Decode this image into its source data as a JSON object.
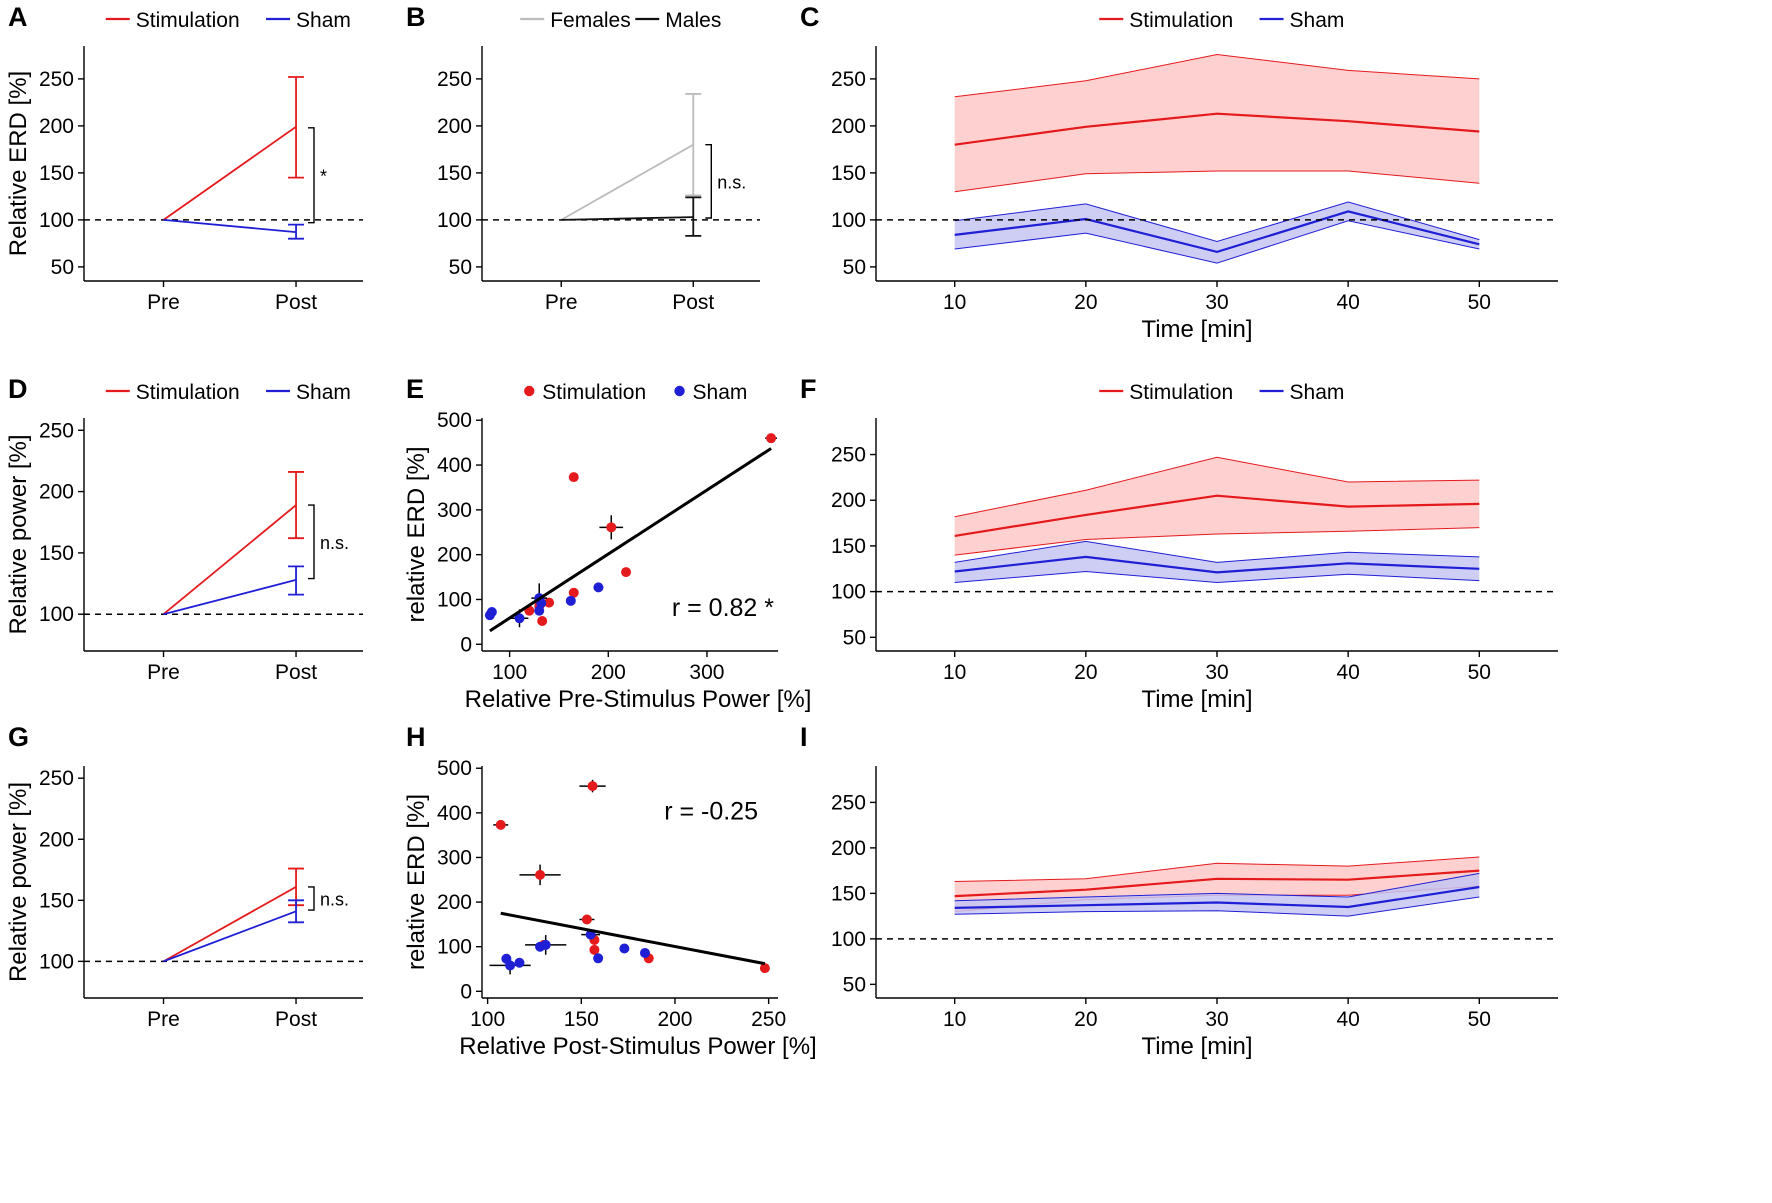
{
  "colors": {
    "stimulation": "#e41a1c",
    "sham": "#1f1fd6",
    "stim_fill": "#ffc8c8",
    "sham_fill": "#c6c6f2",
    "females": "#bbbbbb",
    "males": "#111111",
    "fit": "#000000"
  },
  "chart_data": [
    {
      "panel": "A",
      "type": "line",
      "categories": [
        "Pre",
        "Post"
      ],
      "ylabel": "Relative ERD [%]",
      "xlabel": "",
      "ylim": [
        35,
        285
      ],
      "yticks": [
        50,
        100,
        150,
        200,
        250
      ],
      "reference_line": 100,
      "legend": {
        "position": "top",
        "entries": [
          "Stimulation",
          "Sham"
        ]
      },
      "series": [
        {
          "name": "Stimulation",
          "color_key": "stimulation",
          "values": [
            100,
            199
          ],
          "err_low": [
            null,
            145
          ],
          "err_high": [
            null,
            252
          ]
        },
        {
          "name": "Sham",
          "color_key": "sham",
          "values": [
            100,
            87
          ],
          "err_low": [
            null,
            80
          ],
          "err_high": [
            null,
            95
          ]
        }
      ],
      "comparison": {
        "label": "*",
        "from": 97,
        "to": 198
      }
    },
    {
      "panel": "B",
      "type": "line",
      "categories": [
        "Pre",
        "Post"
      ],
      "ylabel": "",
      "xlabel": "",
      "ylim": [
        35,
        285
      ],
      "yticks": [
        50,
        100,
        150,
        200,
        250
      ],
      "reference_line": 100,
      "legend": {
        "position": "top",
        "entries": [
          "Females",
          "Males"
        ]
      },
      "series": [
        {
          "name": "Females",
          "color_key": "females",
          "values": [
            100,
            180
          ],
          "err_low": [
            null,
            126
          ],
          "err_high": [
            null,
            234
          ]
        },
        {
          "name": "Males",
          "color_key": "males",
          "values": [
            100,
            103
          ],
          "err_low": [
            null,
            83
          ],
          "err_high": [
            null,
            124
          ]
        }
      ],
      "comparison": {
        "label": "n.s.",
        "from": 102,
        "to": 180
      }
    },
    {
      "panel": "C",
      "type": "area",
      "x": [
        10,
        20,
        30,
        40,
        50
      ],
      "xlabel": "Time [min]",
      "ylabel": "",
      "xlim": [
        4,
        56
      ],
      "xticks": [
        10,
        20,
        30,
        40,
        50
      ],
      "ylim": [
        35,
        285
      ],
      "yticks": [
        50,
        100,
        150,
        200,
        250
      ],
      "reference_line": 100,
      "legend": {
        "position": "top",
        "entries": [
          "Stimulation",
          "Sham"
        ]
      },
      "series": [
        {
          "name": "Stimulation",
          "color_key": "stimulation",
          "fill_key": "stim_fill",
          "values": [
            180,
            199,
            213,
            205,
            194
          ],
          "lower": [
            130,
            149,
            152,
            152,
            139
          ],
          "upper": [
            231,
            248,
            276,
            259,
            250
          ]
        },
        {
          "name": "Sham",
          "color_key": "sham",
          "fill_key": "sham_fill",
          "values": [
            84,
            101,
            66,
            109,
            74
          ],
          "lower": [
            69,
            86,
            54,
            99,
            69
          ],
          "upper": [
            99,
            117,
            77,
            119,
            79
          ]
        }
      ]
    },
    {
      "panel": "D",
      "type": "line",
      "categories": [
        "Pre",
        "Post"
      ],
      "ylabel": "Relative power [%]",
      "xlabel": "",
      "ylim": [
        70,
        260
      ],
      "yticks": [
        100,
        150,
        200,
        250
      ],
      "reference_line": 100,
      "legend": {
        "position": "top",
        "entries": [
          "Stimulation",
          "Sham"
        ]
      },
      "series": [
        {
          "name": "Stimulation",
          "color_key": "stimulation",
          "values": [
            100,
            189
          ],
          "err_low": [
            null,
            162
          ],
          "err_high": [
            null,
            216
          ]
        },
        {
          "name": "Sham",
          "color_key": "sham",
          "values": [
            100,
            128
          ],
          "err_low": [
            null,
            116
          ],
          "err_high": [
            null,
            139
          ]
        }
      ],
      "comparison": {
        "label": "n.s.",
        "from": 129,
        "to": 189
      }
    },
    {
      "panel": "E",
      "type": "scatter",
      "xlabel": "Relative Pre-Stimulus Power [%]",
      "ylabel": "relative ERD [%]",
      "xlim": [
        72,
        372
      ],
      "xticks": [
        100,
        200,
        300
      ],
      "ylim": [
        -15,
        505
      ],
      "yticks": [
        0,
        100,
        200,
        300,
        400,
        500
      ],
      "legend": {
        "position": "top",
        "entries": [
          "Stimulation",
          "Sham"
        ]
      },
      "fit": {
        "x": [
          80,
          365
        ],
        "y": [
          30,
          437
        ]
      },
      "annotation": "r = 0.82 *",
      "points": [
        {
          "group": "Stimulation",
          "x": 365,
          "y": 460,
          "xerr": 6,
          "yerr": 10
        },
        {
          "group": "Stimulation",
          "x": 165,
          "y": 373,
          "xerr": 4,
          "yerr": 6
        },
        {
          "group": "Stimulation",
          "x": 203,
          "y": 261,
          "xerr": 12,
          "yerr": 27
        },
        {
          "group": "Stimulation",
          "x": 218,
          "y": 161,
          "xerr": 4,
          "yerr": 8
        },
        {
          "group": "Stimulation",
          "x": 165,
          "y": 115,
          "xerr": 0,
          "yerr": 0
        },
        {
          "group": "Stimulation",
          "x": 140,
          "y": 93,
          "xerr": 0,
          "yerr": 0
        },
        {
          "group": "Stimulation",
          "x": 130,
          "y": 85,
          "xerr": 0,
          "yerr": 0
        },
        {
          "group": "Stimulation",
          "x": 120,
          "y": 75,
          "xerr": 0,
          "yerr": 0
        },
        {
          "group": "Stimulation",
          "x": 133,
          "y": 52,
          "xerr": 0,
          "yerr": 0
        },
        {
          "group": "Sham",
          "x": 82,
          "y": 72,
          "xerr": 0,
          "yerr": 0
        },
        {
          "group": "Sham",
          "x": 80,
          "y": 65,
          "xerr": 0,
          "yerr": 0
        },
        {
          "group": "Sham",
          "x": 110,
          "y": 58,
          "xerr": 9,
          "yerr": 20
        },
        {
          "group": "Sham",
          "x": 130,
          "y": 103,
          "xerr": 8,
          "yerr": 33
        },
        {
          "group": "Sham",
          "x": 132,
          "y": 92,
          "xerr": 0,
          "yerr": 0
        },
        {
          "group": "Sham",
          "x": 130,
          "y": 75,
          "xerr": 0,
          "yerr": 0
        },
        {
          "group": "Sham",
          "x": 190,
          "y": 127,
          "xerr": 5,
          "yerr": 9
        },
        {
          "group": "Sham",
          "x": 162,
          "y": 97,
          "xerr": 0,
          "yerr": 0
        }
      ]
    },
    {
      "panel": "F",
      "type": "area",
      "x": [
        10,
        20,
        30,
        40,
        50
      ],
      "xlabel": "Time [min]",
      "ylabel": "",
      "xlim": [
        4,
        56
      ],
      "xticks": [
        10,
        20,
        30,
        40,
        50
      ],
      "ylim": [
        35,
        290
      ],
      "yticks": [
        50,
        100,
        150,
        200,
        250
      ],
      "reference_line": 100,
      "legend": {
        "position": "top",
        "entries": [
          "Stimulation",
          "Sham"
        ]
      },
      "series": [
        {
          "name": "Stimulation",
          "color_key": "stimulation",
          "fill_key": "stim_fill",
          "values": [
            161,
            184,
            205,
            193,
            196
          ],
          "lower": [
            140,
            157,
            163,
            166,
            170
          ],
          "upper": [
            182,
            211,
            247,
            220,
            222
          ]
        },
        {
          "name": "Sham",
          "color_key": "sham",
          "fill_key": "sham_fill",
          "values": [
            122,
            138,
            121,
            131,
            125
          ],
          "lower": [
            110,
            122,
            110,
            119,
            112
          ],
          "upper": [
            132,
            155,
            132,
            143,
            138
          ]
        }
      ]
    },
    {
      "panel": "G",
      "type": "line",
      "categories": [
        "Pre",
        "Post"
      ],
      "ylabel": "Relative power [%]",
      "xlabel": "",
      "ylim": [
        70,
        260
      ],
      "yticks": [
        100,
        150,
        200,
        250
      ],
      "reference_line": 100,
      "legend": {
        "position": "none",
        "entries": []
      },
      "series": [
        {
          "name": "Stimulation",
          "color_key": "stimulation",
          "values": [
            100,
            161
          ],
          "err_low": [
            null,
            146
          ],
          "err_high": [
            null,
            176
          ]
        },
        {
          "name": "Sham",
          "color_key": "sham",
          "values": [
            100,
            141
          ],
          "err_low": [
            null,
            132
          ],
          "err_high": [
            null,
            150
          ]
        }
      ],
      "comparison": {
        "label": "n.s.",
        "from": 142,
        "to": 161
      }
    },
    {
      "panel": "H",
      "type": "scatter",
      "xlabel": "Relative Post-Stimulus Power [%]",
      "ylabel": "relative ERD [%]",
      "xlim": [
        97,
        255
      ],
      "xticks": [
        100,
        150,
        200,
        250
      ],
      "ylim": [
        -15,
        505
      ],
      "yticks": [
        0,
        100,
        200,
        300,
        400,
        500
      ],
      "legend": {
        "position": "none",
        "entries": []
      },
      "fit": {
        "x": [
          107,
          248
        ],
        "y": [
          175,
          62
        ]
      },
      "annotation": "r = -0.25",
      "points": [
        {
          "group": "Stimulation",
          "x": 107,
          "y": 373,
          "xerr": 4,
          "yerr": 6
        },
        {
          "group": "Stimulation",
          "x": 156,
          "y": 460,
          "xerr": 7,
          "yerr": 14
        },
        {
          "group": "Stimulation",
          "x": 128,
          "y": 261,
          "xerr": 11,
          "yerr": 23
        },
        {
          "group": "Stimulation",
          "x": 153,
          "y": 161,
          "xerr": 4,
          "yerr": 6
        },
        {
          "group": "Stimulation",
          "x": 157,
          "y": 115,
          "xerr": 0,
          "yerr": 0
        },
        {
          "group": "Stimulation",
          "x": 157,
          "y": 93,
          "xerr": 0,
          "yerr": 0
        },
        {
          "group": "Stimulation",
          "x": 186,
          "y": 74,
          "xerr": 0,
          "yerr": 0
        },
        {
          "group": "Stimulation",
          "x": 248,
          "y": 52,
          "xerr": 0,
          "yerr": 0
        },
        {
          "group": "Stimulation",
          "x": 130,
          "y": 104,
          "xerr": 0,
          "yerr": 0
        },
        {
          "group": "Sham",
          "x": 112,
          "y": 58,
          "xerr": 11,
          "yerr": 20
        },
        {
          "group": "Sham",
          "x": 131,
          "y": 104,
          "xerr": 11,
          "yerr": 22
        },
        {
          "group": "Sham",
          "x": 110,
          "y": 73,
          "xerr": 0,
          "yerr": 0
        },
        {
          "group": "Sham",
          "x": 117,
          "y": 64,
          "xerr": 0,
          "yerr": 0
        },
        {
          "group": "Sham",
          "x": 128,
          "y": 100,
          "xerr": 0,
          "yerr": 0
        },
        {
          "group": "Sham",
          "x": 155,
          "y": 127,
          "xerr": 5,
          "yerr": 8
        },
        {
          "group": "Sham",
          "x": 173,
          "y": 96,
          "xerr": 0,
          "yerr": 0
        },
        {
          "group": "Sham",
          "x": 184,
          "y": 86,
          "xerr": 0,
          "yerr": 0
        },
        {
          "group": "Sham",
          "x": 159,
          "y": 74,
          "xerr": 0,
          "yerr": 0
        }
      ]
    },
    {
      "panel": "I",
      "type": "area",
      "x": [
        10,
        20,
        30,
        40,
        50
      ],
      "xlabel": "Time [min]",
      "ylabel": "",
      "xlim": [
        4,
        56
      ],
      "xticks": [
        10,
        20,
        30,
        40,
        50
      ],
      "ylim": [
        35,
        290
      ],
      "yticks": [
        50,
        100,
        150,
        200,
        250
      ],
      "reference_line": 100,
      "legend": {
        "position": "none",
        "entries": []
      },
      "series": [
        {
          "name": "Stimulation",
          "color_key": "stimulation",
          "fill_key": "stim_fill",
          "values": [
            147,
            154,
            166,
            165,
            175
          ],
          "lower": [
            130,
            143,
            148,
            148,
            158
          ],
          "upper": [
            163,
            166,
            183,
            180,
            190
          ]
        },
        {
          "name": "Sham",
          "color_key": "sham",
          "fill_key": "sham_fill",
          "values": [
            134,
            137,
            140,
            135,
            157
          ],
          "lower": [
            127,
            130,
            131,
            125,
            146
          ],
          "upper": [
            142,
            146,
            150,
            146,
            172
          ]
        }
      ]
    }
  ]
}
